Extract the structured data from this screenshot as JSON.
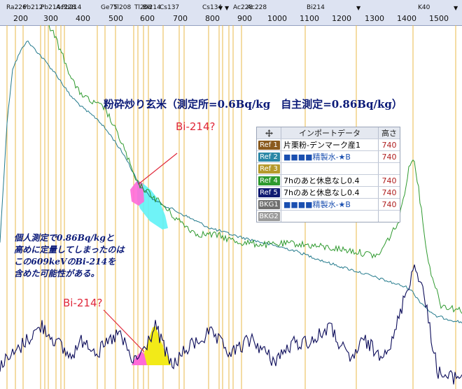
{
  "ruler": {
    "ticks": [
      "200",
      "300",
      "400",
      "500",
      "600",
      "700",
      "800",
      "900",
      "1000",
      "1100",
      "1200",
      "1300",
      "1400",
      "1500"
    ],
    "peak_labels": [
      {
        "text": "Ra226"
      },
      {
        "text": "Pb212"
      },
      {
        "text": "Pb214"
      },
      {
        "text": "Ac228"
      },
      {
        "text": "Pb214"
      },
      {
        "text": "Ge75"
      },
      {
        "text": "Tl208"
      },
      {
        "text": "Tl208"
      },
      {
        "text": "Bi214"
      },
      {
        "text": "Cs137"
      },
      {
        "text": "Cs134"
      },
      {
        "text": "Ac228"
      },
      {
        "text": "Ac228"
      },
      {
        "text": "Bi214"
      },
      {
        "text": "K40"
      }
    ]
  },
  "title": "粉砕炒り玄米（測定所=0.6Bq/kg　自主測定=0.86Bq/kg）",
  "annotation_upper": "Bi-214?",
  "annotation_lower": "Bi-214?",
  "note": {
    "line1": "個人測定で0.86Bq/kgと",
    "line2": "高めに定量してしまったのは",
    "line3": "この609keVのBi-214を",
    "line4": "含めた可能性がある。"
  },
  "ref_table": {
    "move_icon": "move-icon",
    "header_import": "インポートデータ",
    "header_height": "高さ",
    "rows": [
      {
        "tag": "Ref 1",
        "color": "#8a5a1e",
        "name": "片栗粉-デンマーク産1",
        "height": "740"
      },
      {
        "tag": "Ref 2",
        "color": "#2a87a6",
        "name": "■■■■精製水-★B",
        "height": "740"
      },
      {
        "tag": "Ref 3",
        "color": "#b69a2c",
        "name": "",
        "height": ""
      },
      {
        "tag": "Ref 4",
        "color": "#2e9a2e",
        "name": "7hのあと休息なし0.4",
        "height": "740"
      },
      {
        "tag": "Ref 5",
        "color": "#101a72",
        "name": "7hのあと休息なし0.4",
        "height": "740"
      },
      {
        "tag": "BKG1",
        "color": "#6e6e6e",
        "name": "■■■■精製水-★B",
        "height": "740"
      },
      {
        "tag": "BKG2",
        "color": "#9a9a9a",
        "name": "",
        "height": ""
      }
    ]
  },
  "colors": {
    "green_trace": "#2f9a2f",
    "teal_trace": "#237a8c",
    "navy_trace": "#0c0c5a",
    "gridline": "#e9b84a",
    "highlight_cyan": "#5ff2f6",
    "highlight_pink": "#ff6ad8",
    "highlight_yellow": "#f2ea18"
  }
}
